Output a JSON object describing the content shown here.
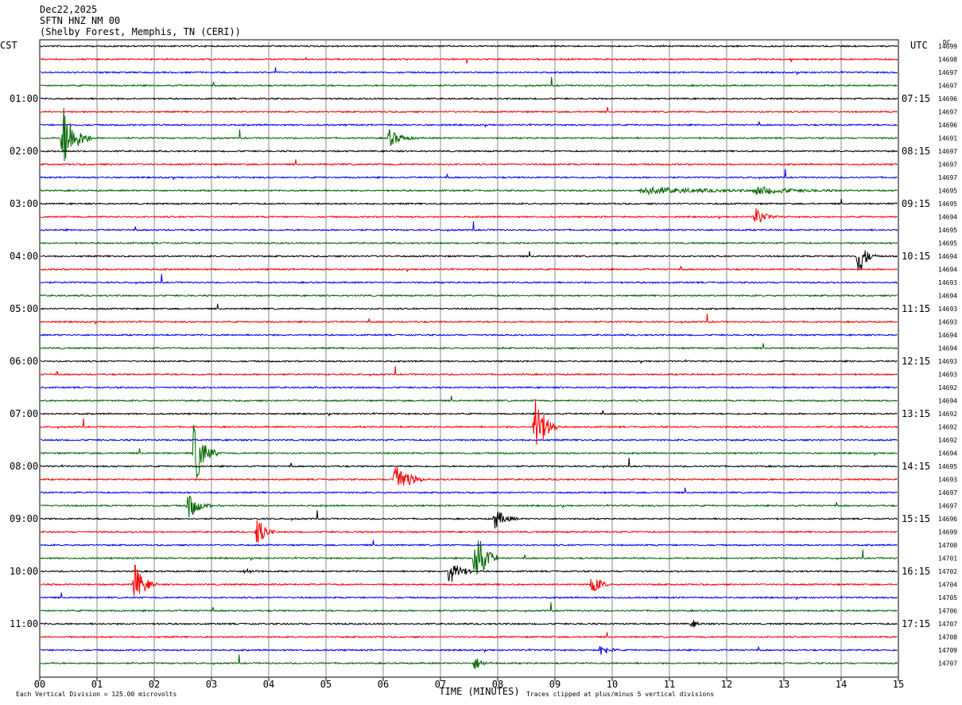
{
  "header": {
    "date": "Dec22,2025",
    "station": "SFTN HNZ NM 00",
    "location": "(Shelby Forest, Memphis, TN (CERI))"
  },
  "chart_data": {
    "type": "line",
    "left_axis_title": "CST",
    "right_axis_title": "UTC",
    "dc_label": "DC",
    "xlabel": "TIME (MINUTES)",
    "x_range": [
      0,
      15
    ],
    "x_ticks": [
      "00",
      "01",
      "02",
      "03",
      "04",
      "05",
      "06",
      "07",
      "08",
      "09",
      "10",
      "11",
      "12",
      "13",
      "14",
      "15"
    ],
    "colors": [
      "#000000",
      "#ff0000",
      "#0000ff",
      "#006400"
    ],
    "row_interval_minutes": 15,
    "left_hour_labels": [
      {
        "row": 4,
        "label": "01:00"
      },
      {
        "row": 8,
        "label": "02:00"
      },
      {
        "row": 12,
        "label": "03:00"
      },
      {
        "row": 16,
        "label": "04:00"
      },
      {
        "row": 20,
        "label": "05:00"
      },
      {
        "row": 24,
        "label": "06:00"
      },
      {
        "row": 28,
        "label": "07:00"
      },
      {
        "row": 32,
        "label": "08:00"
      },
      {
        "row": 36,
        "label": "09:00"
      },
      {
        "row": 40,
        "label": "10:00"
      },
      {
        "row": 44,
        "label": "11:00"
      }
    ],
    "right_hour_labels": [
      {
        "row": 4,
        "label": "07:15"
      },
      {
        "row": 8,
        "label": "08:15"
      },
      {
        "row": 12,
        "label": "09:15"
      },
      {
        "row": 16,
        "label": "10:15"
      },
      {
        "row": 20,
        "label": "11:15"
      },
      {
        "row": 24,
        "label": "12:15"
      },
      {
        "row": 28,
        "label": "13:15"
      },
      {
        "row": 32,
        "label": "14:15"
      },
      {
        "row": 36,
        "label": "15:15"
      },
      {
        "row": 40,
        "label": "16:15"
      },
      {
        "row": 44,
        "label": "17:15"
      }
    ],
    "dc_offsets": [
      "14699",
      "14698",
      "14697",
      "14697",
      "14696",
      "14697",
      "14696",
      "14691",
      "14697",
      "14697",
      "14697",
      "14695",
      "14695",
      "14694",
      "14695",
      "14695",
      "14694",
      "14694",
      "14693",
      "14694",
      "14693",
      "14693",
      "14694",
      "14694",
      "14693",
      "14693",
      "14692",
      "14694",
      "14692",
      "14692",
      "14692",
      "14694",
      "14695",
      "14693",
      "14697",
      "14697",
      "14696",
      "14699",
      "14700",
      "14701",
      "14702",
      "14704",
      "14705",
      "14706",
      "14707",
      "14708",
      "14709",
      "14707"
    ],
    "events": [
      {
        "row": 7,
        "minute": 0.4,
        "amp": 5.0,
        "dur": 0.5
      },
      {
        "row": 7,
        "minute": 6.1,
        "amp": 1.2,
        "dur": 0.5
      },
      {
        "row": 11,
        "minute": 10.5,
        "amp": 0.5,
        "dur": 2.5
      },
      {
        "row": 11,
        "minute": 12.5,
        "amp": 0.5,
        "dur": 1.5
      },
      {
        "row": 13,
        "minute": 12.5,
        "amp": 1.3,
        "dur": 0.4
      },
      {
        "row": 16,
        "minute": 14.3,
        "amp": 3.0,
        "dur": 0.3
      },
      {
        "row": 29,
        "minute": 8.65,
        "amp": 5.0,
        "dur": 0.4
      },
      {
        "row": 31,
        "minute": 2.7,
        "amp": 5.0,
        "dur": 0.4
      },
      {
        "row": 33,
        "minute": 6.2,
        "amp": 3.0,
        "dur": 0.5
      },
      {
        "row": 35,
        "minute": 2.6,
        "amp": 2.0,
        "dur": 0.4
      },
      {
        "row": 36,
        "minute": 7.95,
        "amp": 1.5,
        "dur": 0.4
      },
      {
        "row": 37,
        "minute": 3.8,
        "amp": 2.5,
        "dur": 0.3
      },
      {
        "row": 39,
        "minute": 7.6,
        "amp": 5.0,
        "dur": 0.4
      },
      {
        "row": 40,
        "minute": 7.15,
        "amp": 2.5,
        "dur": 0.4
      },
      {
        "row": 40,
        "minute": 3.6,
        "amp": 0.4,
        "dur": 0.3
      },
      {
        "row": 41,
        "minute": 1.65,
        "amp": 3.0,
        "dur": 0.4
      },
      {
        "row": 41,
        "minute": 9.65,
        "amp": 1.8,
        "dur": 0.3
      },
      {
        "row": 44,
        "minute": 11.4,
        "amp": 0.6,
        "dur": 0.2
      },
      {
        "row": 46,
        "minute": 9.8,
        "amp": 1.0,
        "dur": 0.3
      },
      {
        "row": 47,
        "minute": 7.6,
        "amp": 1.0,
        "dur": 0.3
      }
    ]
  },
  "footer": {
    "vertical_division": "Each Vertical Division =  125.00 microvolts",
    "clip_note": "Traces clipped at plus/minus 5 vertical divisions"
  }
}
